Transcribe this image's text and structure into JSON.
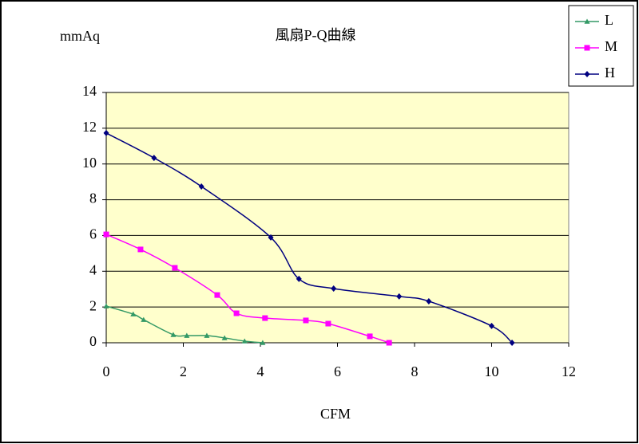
{
  "chart_data": {
    "type": "line",
    "title": "風扇P-Q曲線",
    "y_label": "mmAq",
    "x_label": "CFM",
    "xlim": [
      0,
      12
    ],
    "xticks": [
      0,
      2,
      4,
      6,
      8,
      10,
      12
    ],
    "ylim": [
      0,
      14
    ],
    "yticks": [
      0,
      2,
      4,
      6,
      8,
      10,
      12,
      14
    ],
    "grid": true,
    "legend": "upper right",
    "plot_background": "#ffffcc",
    "series": [
      {
        "name": "L",
        "color": "#339966",
        "marker": "triangle",
        "x": [
          0,
          0.7,
          0.97,
          1.74,
          2.09,
          2.61,
          3.07,
          3.59,
          4.06
        ],
        "values": [
          2.05,
          1.6,
          1.29,
          0.45,
          0.4,
          0.4,
          0.27,
          0.09,
          0
        ]
      },
      {
        "name": "M",
        "color": "#ff00ff",
        "marker": "square",
        "x": [
          0,
          0.89,
          1.78,
          2.88,
          3.38,
          4.12,
          5.18,
          5.76,
          6.84,
          7.34
        ],
        "values": [
          6.06,
          5.22,
          4.19,
          2.67,
          1.65,
          1.38,
          1.25,
          1.07,
          0.36,
          0
        ]
      },
      {
        "name": "H",
        "color": "#000080",
        "marker": "diamond",
        "x": [
          0,
          1.24,
          2.47,
          4.27,
          5.0,
          5.9,
          7.6,
          8.37,
          10.0,
          10.53
        ],
        "values": [
          11.73,
          10.34,
          8.74,
          5.89,
          3.57,
          3.03,
          2.59,
          2.32,
          0.94,
          0
        ]
      }
    ]
  }
}
